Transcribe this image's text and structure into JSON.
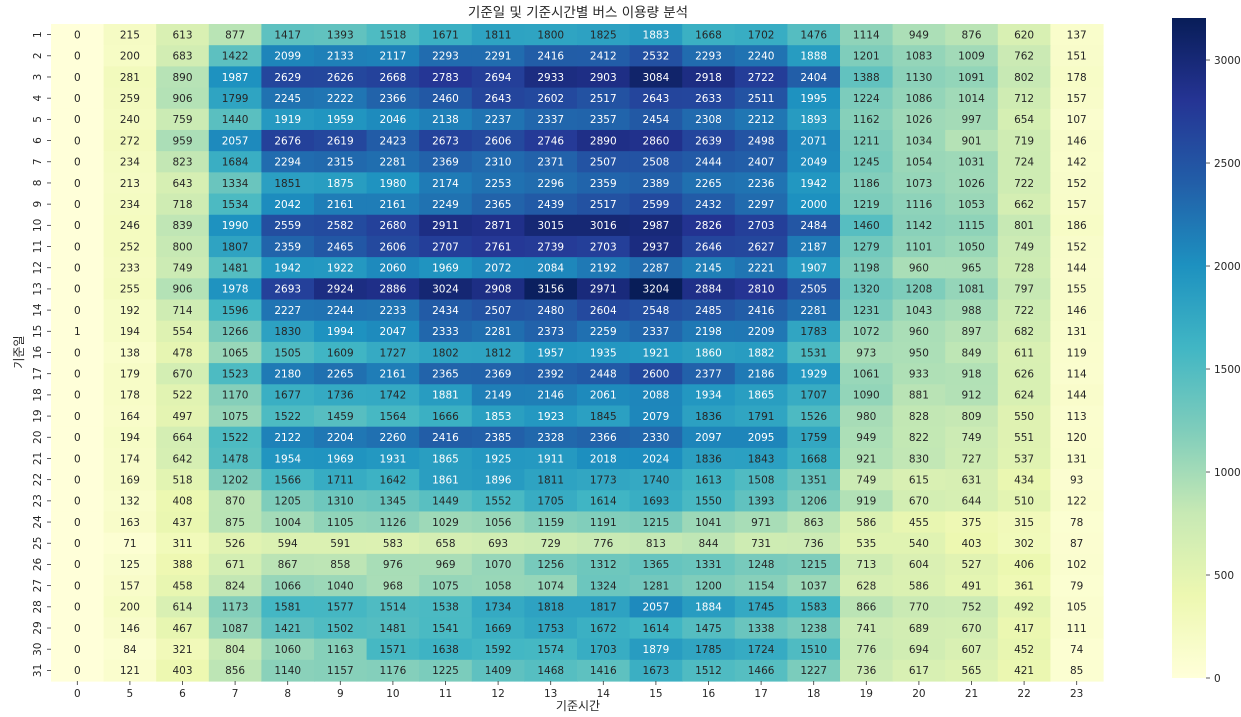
{
  "chart_data": {
    "type": "heatmap",
    "title": "기준일 및 기준시간별 버스 이용량 분석",
    "xlabel": "기준시간",
    "ylabel": "기준일",
    "x_categories": [
      "0",
      "5",
      "6",
      "7",
      "8",
      "9",
      "10",
      "11",
      "12",
      "13",
      "14",
      "15",
      "16",
      "17",
      "18",
      "19",
      "20",
      "21",
      "22",
      "23"
    ],
    "y_categories": [
      "1",
      "2",
      "3",
      "4",
      "5",
      "6",
      "7",
      "8",
      "9",
      "10",
      "11",
      "12",
      "13",
      "14",
      "15",
      "16",
      "17",
      "18",
      "19",
      "20",
      "21",
      "22",
      "23",
      "24",
      "25",
      "26",
      "27",
      "28",
      "29",
      "30",
      "31"
    ],
    "values": [
      [
        0,
        215,
        613,
        877,
        1417,
        1393,
        1518,
        1671,
        1811,
        1800,
        1825,
        1883,
        1668,
        1702,
        1476,
        1114,
        949,
        876,
        620,
        137
      ],
      [
        0,
        200,
        683,
        1422,
        2099,
        2133,
        2117,
        2293,
        2291,
        2416,
        2412,
        2532,
        2293,
        2240,
        1888,
        1201,
        1083,
        1009,
        762,
        151
      ],
      [
        0,
        281,
        890,
        1987,
        2629,
        2626,
        2668,
        2783,
        2694,
        2933,
        2903,
        3084,
        2918,
        2722,
        2404,
        1388,
        1130,
        1091,
        802,
        178
      ],
      [
        0,
        259,
        906,
        1799,
        2245,
        2222,
        2366,
        2460,
        2643,
        2602,
        2517,
        2643,
        2633,
        2511,
        1995,
        1224,
        1086,
        1014,
        712,
        157
      ],
      [
        0,
        240,
        759,
        1440,
        1919,
        1959,
        2046,
        2138,
        2237,
        2337,
        2357,
        2454,
        2308,
        2212,
        1893,
        1162,
        1026,
        997,
        654,
        107
      ],
      [
        0,
        272,
        959,
        2057,
        2676,
        2619,
        2423,
        2673,
        2606,
        2746,
        2890,
        2860,
        2639,
        2498,
        2071,
        1211,
        1034,
        901,
        719,
        146
      ],
      [
        0,
        234,
        823,
        1684,
        2294,
        2315,
        2281,
        2369,
        2310,
        2371,
        2507,
        2508,
        2444,
        2407,
        2049,
        1245,
        1054,
        1031,
        724,
        142
      ],
      [
        0,
        213,
        643,
        1334,
        1851,
        1875,
        1980,
        2174,
        2253,
        2296,
        2359,
        2389,
        2265,
        2236,
        1942,
        1186,
        1073,
        1026,
        722,
        152
      ],
      [
        0,
        234,
        718,
        1534,
        2042,
        2161,
        2161,
        2249,
        2365,
        2439,
        2517,
        2599,
        2432,
        2297,
        2000,
        1219,
        1116,
        1053,
        662,
        157
      ],
      [
        0,
        246,
        839,
        1990,
        2559,
        2582,
        2680,
        2911,
        2871,
        3015,
        3016,
        2987,
        2826,
        2703,
        2484,
        1460,
        1142,
        1115,
        801,
        186
      ],
      [
        0,
        252,
        800,
        1807,
        2359,
        2465,
        2606,
        2707,
        2761,
        2739,
        2703,
        2937,
        2646,
        2627,
        2187,
        1279,
        1101,
        1050,
        749,
        152
      ],
      [
        0,
        233,
        749,
        1481,
        1942,
        1922,
        2060,
        1969,
        2072,
        2084,
        2192,
        2287,
        2145,
        2221,
        1907,
        1198,
        960,
        965,
        728,
        144
      ],
      [
        0,
        255,
        906,
        1978,
        2693,
        2924,
        2886,
        3024,
        2908,
        3156,
        2971,
        3204,
        2884,
        2810,
        2505,
        1320,
        1208,
        1081,
        797,
        155
      ],
      [
        0,
        192,
        714,
        1596,
        2227,
        2244,
        2233,
        2434,
        2507,
        2480,
        2604,
        2548,
        2485,
        2416,
        2281,
        1231,
        1043,
        988,
        722,
        146
      ],
      [
        1,
        194,
        554,
        1266,
        1830,
        1994,
        2047,
        2333,
        2281,
        2373,
        2259,
        2337,
        2198,
        2209,
        1783,
        1072,
        960,
        897,
        682,
        131
      ],
      [
        0,
        138,
        478,
        1065,
        1505,
        1609,
        1727,
        1802,
        1812,
        1957,
        1935,
        1921,
        1860,
        1882,
        1531,
        973,
        950,
        849,
        611,
        119
      ],
      [
        0,
        179,
        670,
        1523,
        2180,
        2265,
        2161,
        2365,
        2369,
        2392,
        2448,
        2600,
        2377,
        2186,
        1929,
        1061,
        933,
        918,
        626,
        114
      ],
      [
        0,
        178,
        522,
        1170,
        1677,
        1736,
        1742,
        1881,
        2149,
        2146,
        2061,
        2088,
        1934,
        1865,
        1707,
        1090,
        881,
        912,
        624,
        144
      ],
      [
        0,
        164,
        497,
        1075,
        1522,
        1459,
        1564,
        1666,
        1853,
        1923,
        1845,
        2079,
        1836,
        1791,
        1526,
        980,
        828,
        809,
        550,
        113
      ],
      [
        0,
        194,
        664,
        1522,
        2122,
        2204,
        2260,
        2416,
        2385,
        2328,
        2366,
        2330,
        2097,
        2095,
        1759,
        949,
        822,
        749,
        551,
        120
      ],
      [
        0,
        174,
        642,
        1478,
        1954,
        1969,
        1931,
        1865,
        1925,
        1911,
        2018,
        2024,
        1836,
        1843,
        1668,
        921,
        830,
        727,
        537,
        131
      ],
      [
        0,
        169,
        518,
        1202,
        1566,
        1711,
        1642,
        1861,
        1896,
        1811,
        1773,
        1740,
        1613,
        1508,
        1351,
        749,
        615,
        631,
        434,
        93
      ],
      [
        0,
        132,
        408,
        870,
        1205,
        1310,
        1345,
        1449,
        1552,
        1705,
        1614,
        1693,
        1550,
        1393,
        1206,
        919,
        670,
        644,
        510,
        122
      ],
      [
        0,
        163,
        437,
        875,
        1004,
        1105,
        1126,
        1029,
        1056,
        1159,
        1191,
        1215,
        1041,
        971,
        863,
        586,
        455,
        375,
        315,
        78
      ],
      [
        0,
        71,
        311,
        526,
        594,
        591,
        583,
        658,
        693,
        729,
        776,
        813,
        844,
        731,
        736,
        535,
        540,
        403,
        302,
        87
      ],
      [
        0,
        125,
        388,
        671,
        867,
        858,
        976,
        969,
        1070,
        1256,
        1312,
        1365,
        1331,
        1248,
        1215,
        713,
        604,
        527,
        406,
        102
      ],
      [
        0,
        157,
        458,
        824,
        1066,
        1040,
        968,
        1075,
        1058,
        1074,
        1324,
        1281,
        1200,
        1154,
        1037,
        628,
        586,
        491,
        361,
        79
      ],
      [
        0,
        200,
        614,
        1173,
        1581,
        1577,
        1514,
        1538,
        1734,
        1818,
        1817,
        2057,
        1884,
        1745,
        1583,
        866,
        770,
        752,
        492,
        105
      ],
      [
        0,
        146,
        467,
        1087,
        1421,
        1502,
        1481,
        1541,
        1669,
        1753,
        1672,
        1614,
        1475,
        1338,
        1238,
        741,
        689,
        670,
        417,
        111
      ],
      [
        0,
        84,
        321,
        804,
        1060,
        1163,
        1571,
        1638,
        1592,
        1574,
        1703,
        1879,
        1785,
        1724,
        1510,
        776,
        694,
        607,
        452,
        74
      ],
      [
        0,
        121,
        403,
        856,
        1140,
        1157,
        1176,
        1225,
        1409,
        1468,
        1416,
        1673,
        1512,
        1466,
        1227,
        736,
        617,
        565,
        421,
        85
      ]
    ],
    "color_range": [
      0,
      3204
    ],
    "colormap": "YlGnBu",
    "annotated": true,
    "colorbar": {
      "position": "right",
      "ticks": [
        0,
        500,
        1000,
        1500,
        2000,
        2500,
        3000
      ]
    }
  }
}
